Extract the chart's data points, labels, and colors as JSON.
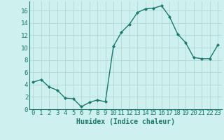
{
  "x": [
    0,
    1,
    2,
    3,
    4,
    5,
    6,
    7,
    8,
    9,
    10,
    11,
    12,
    13,
    14,
    15,
    16,
    17,
    18,
    19,
    20,
    21,
    22,
    23
  ],
  "y": [
    4.4,
    4.8,
    3.6,
    3.1,
    1.8,
    1.7,
    0.4,
    1.1,
    1.5,
    1.2,
    10.2,
    12.5,
    13.8,
    15.7,
    16.3,
    16.4,
    16.8,
    15.0,
    12.2,
    10.8,
    8.4,
    8.2,
    8.2,
    10.4
  ],
  "line_color": "#1a7a6e",
  "marker": "D",
  "marker_size": 2,
  "bg_color": "#cef0ee",
  "grid_color": "#b0d8d4",
  "xlabel": "Humidex (Indice chaleur)",
  "ylim": [
    0,
    17.5
  ],
  "xlim": [
    -0.5,
    23.5
  ],
  "yticks": [
    0,
    2,
    4,
    6,
    8,
    10,
    12,
    14,
    16
  ],
  "xticks": [
    0,
    1,
    2,
    3,
    4,
    5,
    6,
    7,
    8,
    9,
    10,
    11,
    12,
    13,
    14,
    15,
    16,
    17,
    18,
    19,
    20,
    21,
    22,
    23
  ],
  "xlabel_fontsize": 7,
  "tick_fontsize": 6.5,
  "line_width": 1.0
}
